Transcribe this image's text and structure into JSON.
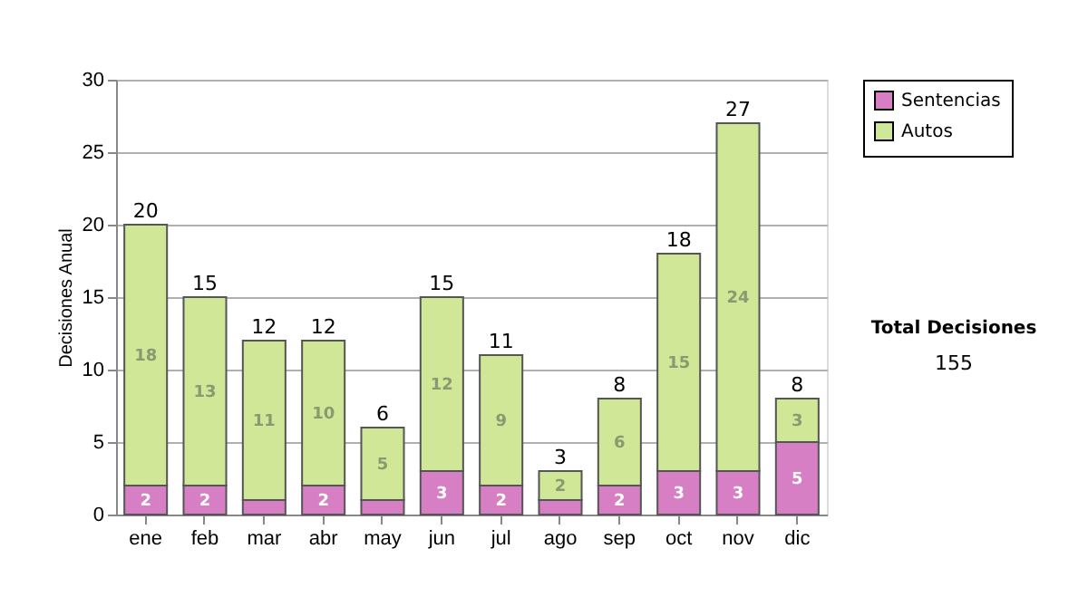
{
  "chart_data": {
    "type": "bar",
    "stacked": true,
    "ylabel": "Decisiones Anual",
    "categories": [
      "ene",
      "feb",
      "mar",
      "abr",
      "may",
      "jun",
      "jul",
      "ago",
      "sep",
      "oct",
      "nov",
      "dic"
    ],
    "series": [
      {
        "name": "Sentencias",
        "color": "#d77fc4",
        "values": [
          2,
          2,
          1,
          2,
          1,
          3,
          2,
          1,
          2,
          3,
          3,
          5
        ],
        "value_labels": [
          "2",
          "2",
          null,
          "2",
          null,
          "3",
          "2",
          null,
          "2",
          "3",
          "3",
          "5"
        ]
      },
      {
        "name": "Autos",
        "color": "#cfe797",
        "values": [
          18,
          13,
          11,
          10,
          5,
          12,
          9,
          2,
          6,
          15,
          24,
          3
        ],
        "value_labels": [
          "18",
          "13",
          "11",
          "10",
          "5",
          "12",
          "9",
          "2",
          "6",
          "15",
          "24",
          "3"
        ]
      }
    ],
    "totals": [
      "20",
      "15",
      "12",
      "12",
      "6",
      "15",
      "11",
      "3",
      "8",
      "18",
      "27",
      "8"
    ],
    "ylim": [
      0,
      30
    ],
    "yticks": [
      0,
      5,
      10,
      15,
      20,
      25,
      30
    ],
    "grid": "y",
    "legend": "right",
    "annotations": [
      "Total Decisiones",
      "155"
    ]
  }
}
